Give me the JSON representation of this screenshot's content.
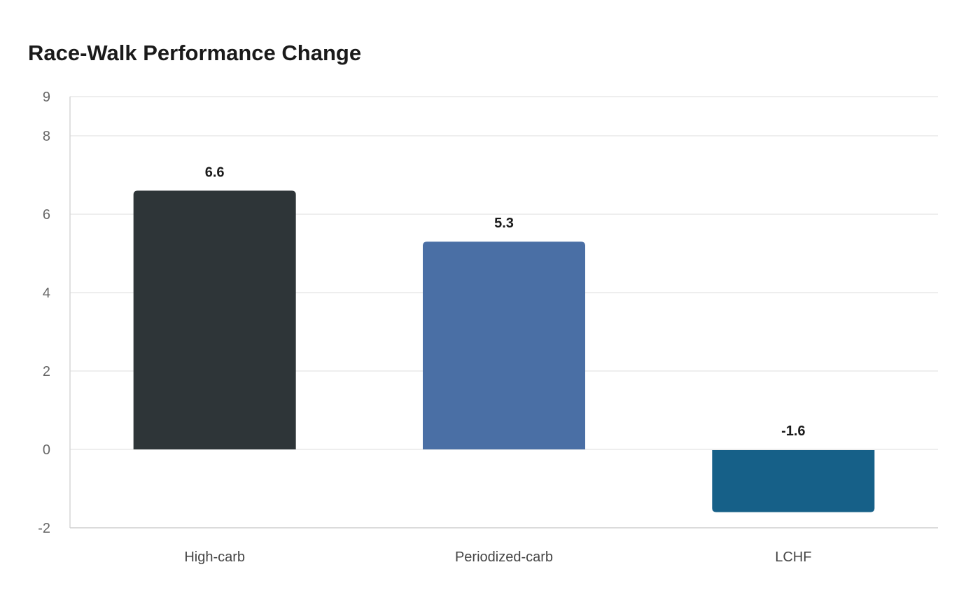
{
  "chart_data": {
    "type": "bar",
    "title": "Race-Walk Performance Change",
    "xlabel": "",
    "ylabel": "",
    "categories": [
      "High-carb",
      "Periodized-carb",
      "LCHF"
    ],
    "values": [
      6.6,
      5.3,
      -1.6
    ],
    "data_labels": [
      "6.6",
      "5.3",
      "-1.6"
    ],
    "colors": [
      "#2e3538",
      "#4a6fa5",
      "#166088"
    ],
    "ylim": [
      -2,
      9
    ],
    "yticks": [
      -2,
      0,
      2,
      4,
      6,
      8,
      9
    ],
    "grid": true,
    "legend": "none"
  }
}
